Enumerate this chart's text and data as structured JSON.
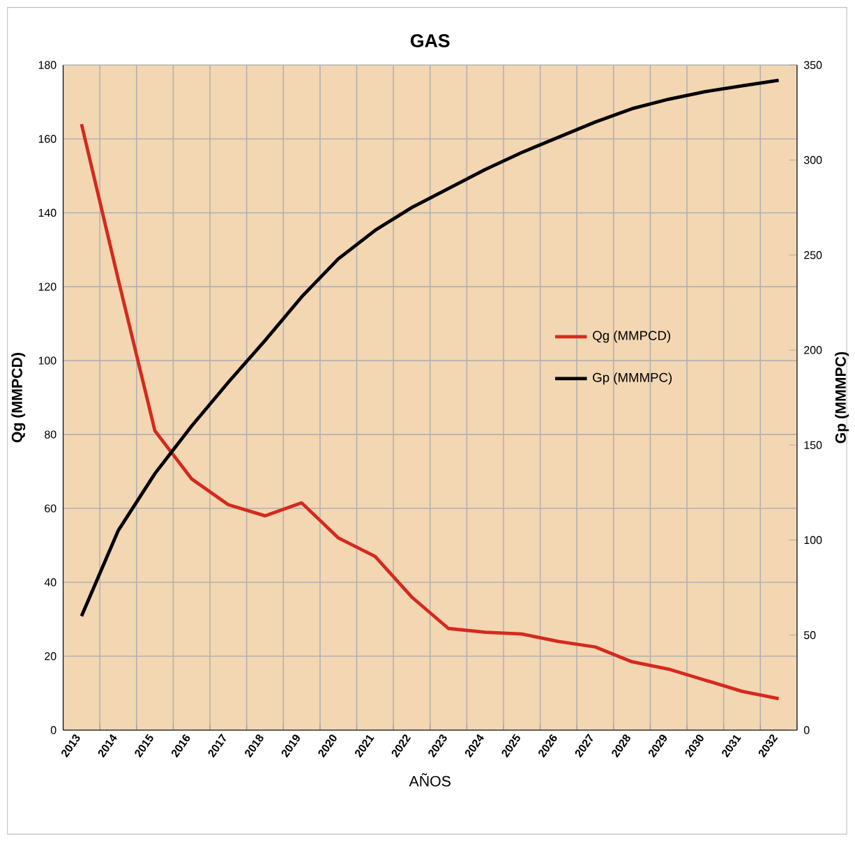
{
  "chart_data": {
    "type": "line",
    "title": "GAS",
    "xlabel": "AÑOS",
    "ylabel": "Qg (MMPCD)",
    "y2label": "Gp (MMMPC)",
    "categories": [
      "2013",
      "2014",
      "2015",
      "2016",
      "2017",
      "2018",
      "2019",
      "2020",
      "2021",
      "2022",
      "2023",
      "2024",
      "2025",
      "2026",
      "2027",
      "2028",
      "2029",
      "2030",
      "2031",
      "2032"
    ],
    "series": [
      {
        "name": "Qg (MMPCD)",
        "color": "#d42a1e",
        "values": [
          164,
          122,
          81,
          68,
          61,
          58,
          61.5,
          52,
          47,
          36,
          27.5,
          26.5,
          26,
          24,
          22.5,
          18.5,
          16.5,
          13.5,
          10.5,
          8.5
        ]
      },
      {
        "name": "Gp (MMMPC)",
        "color": "#000000",
        "axis": "y2",
        "values": [
          60,
          105,
          135,
          160,
          183,
          205,
          228,
          248,
          263,
          275,
          285,
          295,
          304,
          312,
          320,
          327,
          332,
          336,
          339,
          342
        ]
      }
    ],
    "ylim": [
      0,
      180
    ],
    "yticks": [
      0,
      20,
      40,
      60,
      80,
      100,
      120,
      140,
      160,
      180
    ],
    "y2lim": [
      0,
      350
    ],
    "y2ticks": [
      0,
      50,
      100,
      150,
      200,
      250,
      300,
      350
    ],
    "grid": true,
    "legend": "right",
    "marker": "none",
    "line_style": "solid"
  }
}
